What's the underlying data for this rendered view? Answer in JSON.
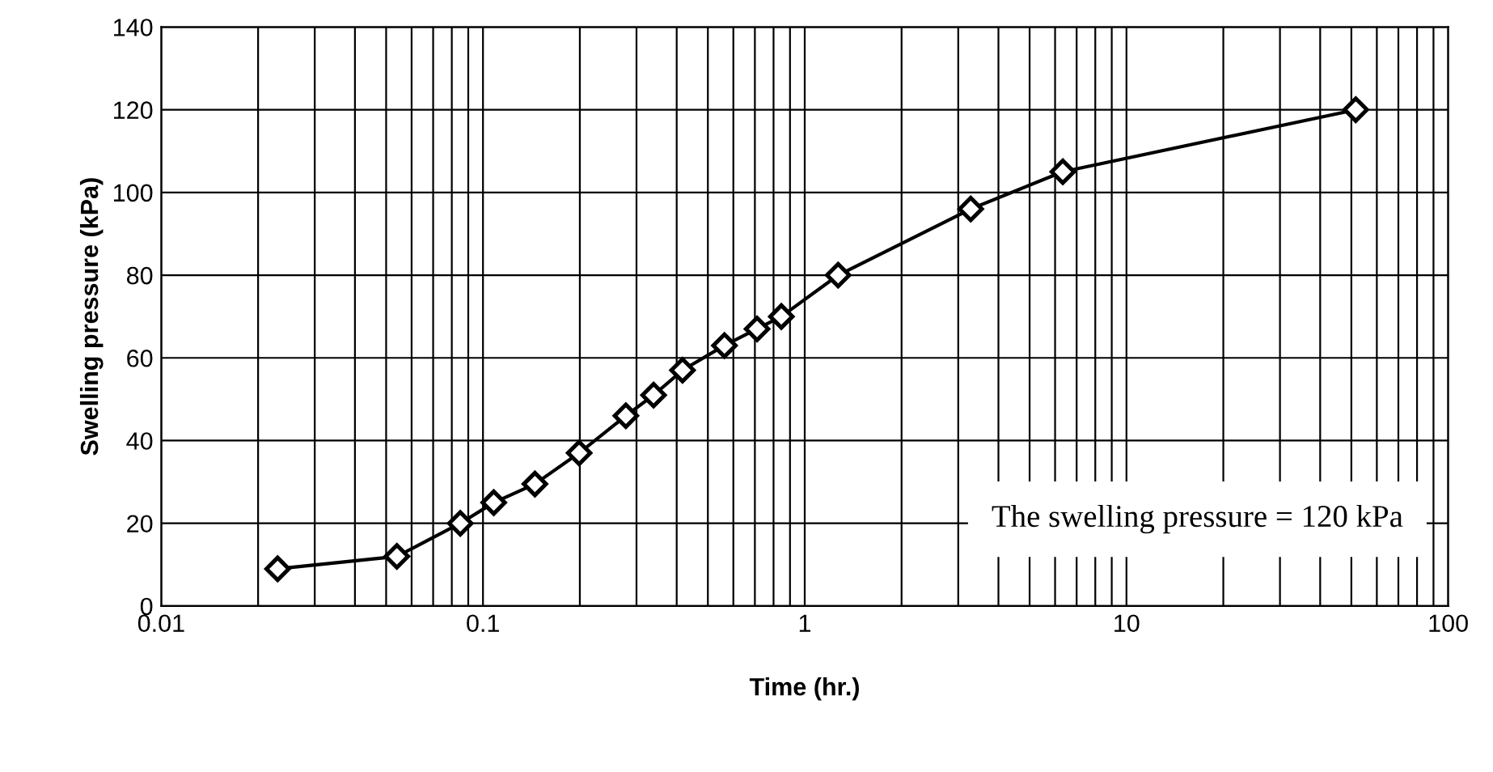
{
  "chart_data": {
    "type": "line",
    "xlabel": "Time (hr.)",
    "ylabel": "Swelling pressure (kPa)",
    "log": "x",
    "grid": true,
    "marker": "diamond",
    "line_style": "solid",
    "xlim": [
      0.01,
      100
    ],
    "xticks": [
      0.01,
      0.1,
      1,
      10,
      100
    ],
    "ylim": [
      0,
      140
    ],
    "yticks": [
      0,
      20,
      40,
      60,
      80,
      100,
      120,
      140
    ],
    "annotations": [
      {
        "text": "The swelling pressure = 120 kPa"
      }
    ],
    "series": [
      {
        "color": "#000000",
        "x": [
          0.023,
          0.054,
          0.085,
          0.108,
          0.145,
          0.199,
          0.278,
          0.339,
          0.417,
          0.563,
          0.711,
          0.846,
          1.27,
          3.28,
          6.34,
          51.6
        ],
        "values": [
          9,
          12,
          20,
          25,
          29.5,
          37,
          46,
          51,
          57,
          63,
          67,
          70,
          80,
          96,
          105,
          120
        ]
      }
    ]
  }
}
